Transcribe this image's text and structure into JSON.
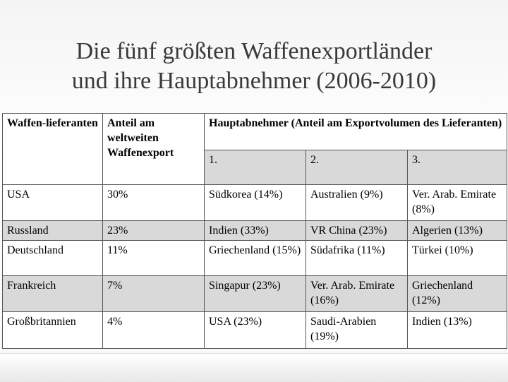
{
  "title": {
    "lines": [
      "Die fünf größten Waffenexportländer",
      "und ihre Hauptabnehmer (2006-2010)"
    ]
  },
  "table": {
    "header": [
      "Waffen-lieferanten",
      "Anteil am weltweiten Waffenexport",
      "Hauptabnehmer (Anteil am Exportvolumen des Lieferanten)"
    ],
    "subheader": [
      "1.",
      "2.",
      "3."
    ],
    "rows": [
      [
        "USA",
        "30%",
        "Südkorea (14%)",
        "Australien (9%)",
        "Ver. Arab. Emirate (8%)"
      ],
      [
        "Russland",
        "23%",
        "Indien (33%)",
        "VR China (23%)",
        "Algerien (13%)"
      ],
      [
        "Deutschland",
        "11%",
        "Griechenland (15%)",
        "Südafrika (11%)",
        "Türkei (10%)"
      ],
      [
        "Frankreich",
        "7%",
        "Singapur (23%)",
        "Ver. Arab. Emirate (16%)",
        "Griechenland (12%)"
      ],
      [
        "Großbritannien",
        "4%",
        "USA (23%)",
        "Saudi-Arabien (19%)",
        "Indien (13%)"
      ]
    ]
  }
}
